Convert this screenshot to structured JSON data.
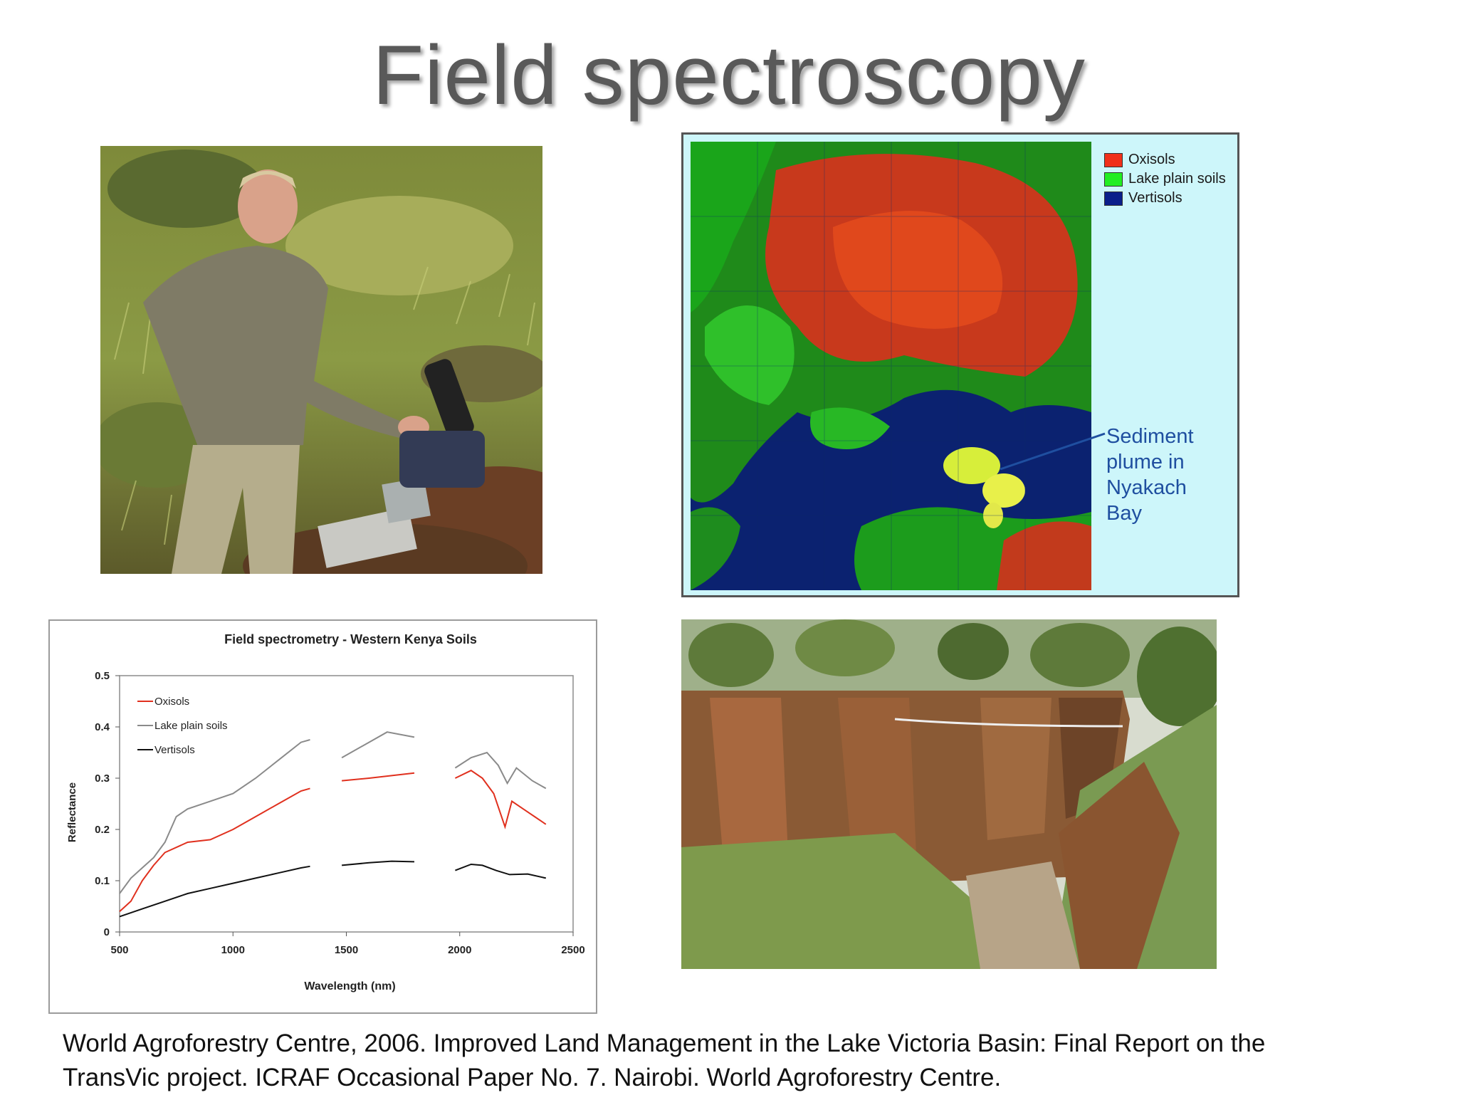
{
  "slide": {
    "title": "Field spectroscopy",
    "citation_line1": "World Agroforestry Centre, 2006. Improved Land Management in the Lake Victoria Basin: Final Report on the",
    "citation_line2": "TransVic project. ICRAF Occasional Paper No. 7. Nairobi. World Agroforestry Centre."
  },
  "map": {
    "legend": [
      {
        "label": "Oxisols",
        "color": "#f0301a"
      },
      {
        "label": "Lake plain soils",
        "color": "#22ee22"
      },
      {
        "label": "Vertisols",
        "color": "#0a1f8a"
      }
    ],
    "annotation": "Sediment plume in Nyakach Bay"
  },
  "chart_data": {
    "type": "line",
    "title": "Field spectrometry - Western Kenya Soils",
    "xlabel": "Wavelength (nm)",
    "ylabel": "Reflectance",
    "xlim": [
      500,
      2500
    ],
    "ylim": [
      0,
      0.5
    ],
    "xticks": [
      "500",
      "1000",
      "1500",
      "2000",
      "2500"
    ],
    "yticks": [
      "0",
      "0.1",
      "0.2",
      "0.3",
      "0.4",
      "0.5"
    ],
    "legend_position": "top-left",
    "grid": false,
    "series": [
      {
        "name": "Oxisols",
        "color": "#e0301e",
        "segments": [
          [
            [
              500,
              0.04
            ],
            [
              550,
              0.06
            ],
            [
              600,
              0.1
            ],
            [
              650,
              0.13
            ],
            [
              700,
              0.155
            ],
            [
              800,
              0.175
            ],
            [
              900,
              0.18
            ],
            [
              1000,
              0.2
            ],
            [
              1100,
              0.225
            ],
            [
              1200,
              0.25
            ],
            [
              1300,
              0.275
            ],
            [
              1340,
              0.28
            ]
          ],
          [
            [
              1480,
              0.295
            ],
            [
              1600,
              0.3
            ],
            [
              1700,
              0.305
            ],
            [
              1800,
              0.31
            ]
          ],
          [
            [
              1980,
              0.3
            ],
            [
              2050,
              0.315
            ],
            [
              2100,
              0.3
            ],
            [
              2150,
              0.27
            ],
            [
              2200,
              0.205
            ],
            [
              2230,
              0.255
            ],
            [
              2280,
              0.24
            ],
            [
              2330,
              0.225
            ],
            [
              2380,
              0.21
            ]
          ]
        ]
      },
      {
        "name": "Lake plain soils",
        "color": "#8a8a8a",
        "segments": [
          [
            [
              500,
              0.075
            ],
            [
              550,
              0.105
            ],
            [
              600,
              0.125
            ],
            [
              650,
              0.145
            ],
            [
              700,
              0.175
            ],
            [
              750,
              0.225
            ],
            [
              800,
              0.24
            ],
            [
              900,
              0.255
            ],
            [
              1000,
              0.27
            ],
            [
              1100,
              0.3
            ],
            [
              1200,
              0.335
            ],
            [
              1300,
              0.37
            ],
            [
              1340,
              0.375
            ]
          ],
          [
            [
              1480,
              0.34
            ],
            [
              1600,
              0.37
            ],
            [
              1680,
              0.39
            ],
            [
              1800,
              0.38
            ]
          ],
          [
            [
              1980,
              0.32
            ],
            [
              2050,
              0.34
            ],
            [
              2120,
              0.35
            ],
            [
              2170,
              0.325
            ],
            [
              2210,
              0.29
            ],
            [
              2250,
              0.32
            ],
            [
              2320,
              0.295
            ],
            [
              2380,
              0.28
            ]
          ]
        ]
      },
      {
        "name": "Vertisols",
        "color": "#111111",
        "segments": [
          [
            [
              500,
              0.03
            ],
            [
              600,
              0.045
            ],
            [
              700,
              0.06
            ],
            [
              800,
              0.075
            ],
            [
              900,
              0.085
            ],
            [
              1000,
              0.095
            ],
            [
              1100,
              0.105
            ],
            [
              1200,
              0.115
            ],
            [
              1300,
              0.125
            ],
            [
              1340,
              0.128
            ]
          ],
          [
            [
              1480,
              0.13
            ],
            [
              1600,
              0.135
            ],
            [
              1700,
              0.138
            ],
            [
              1800,
              0.137
            ]
          ],
          [
            [
              1980,
              0.12
            ],
            [
              2050,
              0.132
            ],
            [
              2100,
              0.13
            ],
            [
              2160,
              0.12
            ],
            [
              2220,
              0.112
            ],
            [
              2300,
              0.113
            ],
            [
              2380,
              0.105
            ]
          ]
        ]
      }
    ]
  }
}
